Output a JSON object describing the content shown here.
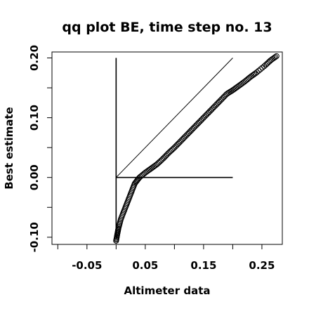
{
  "chart_data": {
    "type": "scatter",
    "title": "qq plot BE, time step no. 13",
    "xlabel": "Altimeter data",
    "ylabel": "Best estimate",
    "xlim": [
      -0.11,
      0.285
    ],
    "ylim": [
      -0.112,
      0.21
    ],
    "x_ticks": [
      -0.1,
      -0.05,
      0.0,
      0.05,
      0.1,
      0.15,
      0.2,
      0.25
    ],
    "x_tick_labels": [
      "",
      "-0.05",
      "",
      "0.05",
      "",
      "0.15",
      "",
      "0.25"
    ],
    "y_ticks": [
      -0.1,
      -0.05,
      0.0,
      0.05,
      0.1,
      0.15,
      0.2
    ],
    "y_tick_labels": [
      "-0.10",
      "",
      "0.00",
      "",
      "0.10",
      "",
      "0.20"
    ],
    "grid": false,
    "legend": "none",
    "reference_lines": [
      {
        "name": "identity",
        "x": [
          0.0,
          0.2
        ],
        "y": [
          0.0,
          0.2
        ]
      },
      {
        "name": "horizontal",
        "x": [
          0.0,
          0.2
        ],
        "y": [
          0.0,
          0.0
        ]
      },
      {
        "name": "vertical",
        "x": [
          0.0,
          0.0
        ],
        "y": [
          -0.1,
          0.2
        ]
      }
    ],
    "quantile_curve_knots": [
      [
        0.0,
        -0.106
      ],
      [
        0.002,
        -0.095
      ],
      [
        0.004,
        -0.085
      ],
      [
        0.008,
        -0.07
      ],
      [
        0.014,
        -0.055
      ],
      [
        0.02,
        -0.04
      ],
      [
        0.026,
        -0.025
      ],
      [
        0.032,
        -0.01
      ],
      [
        0.04,
        0.0
      ],
      [
        0.05,
        0.008
      ],
      [
        0.06,
        0.015
      ],
      [
        0.07,
        0.022
      ],
      [
        0.08,
        0.031
      ],
      [
        0.09,
        0.041
      ],
      [
        0.1,
        0.05
      ],
      [
        0.11,
        0.06
      ],
      [
        0.12,
        0.07
      ],
      [
        0.13,
        0.08
      ],
      [
        0.14,
        0.09
      ],
      [
        0.15,
        0.1
      ],
      [
        0.16,
        0.11
      ],
      [
        0.17,
        0.12
      ],
      [
        0.18,
        0.13
      ],
      [
        0.19,
        0.14
      ],
      [
        0.2,
        0.146
      ],
      [
        0.21,
        0.153
      ],
      [
        0.22,
        0.16
      ],
      [
        0.23,
        0.168
      ],
      [
        0.24,
        0.175
      ],
      [
        0.255,
        0.187
      ],
      [
        0.265,
        0.196
      ],
      [
        0.275,
        0.203
      ]
    ],
    "point_count": 160
  }
}
